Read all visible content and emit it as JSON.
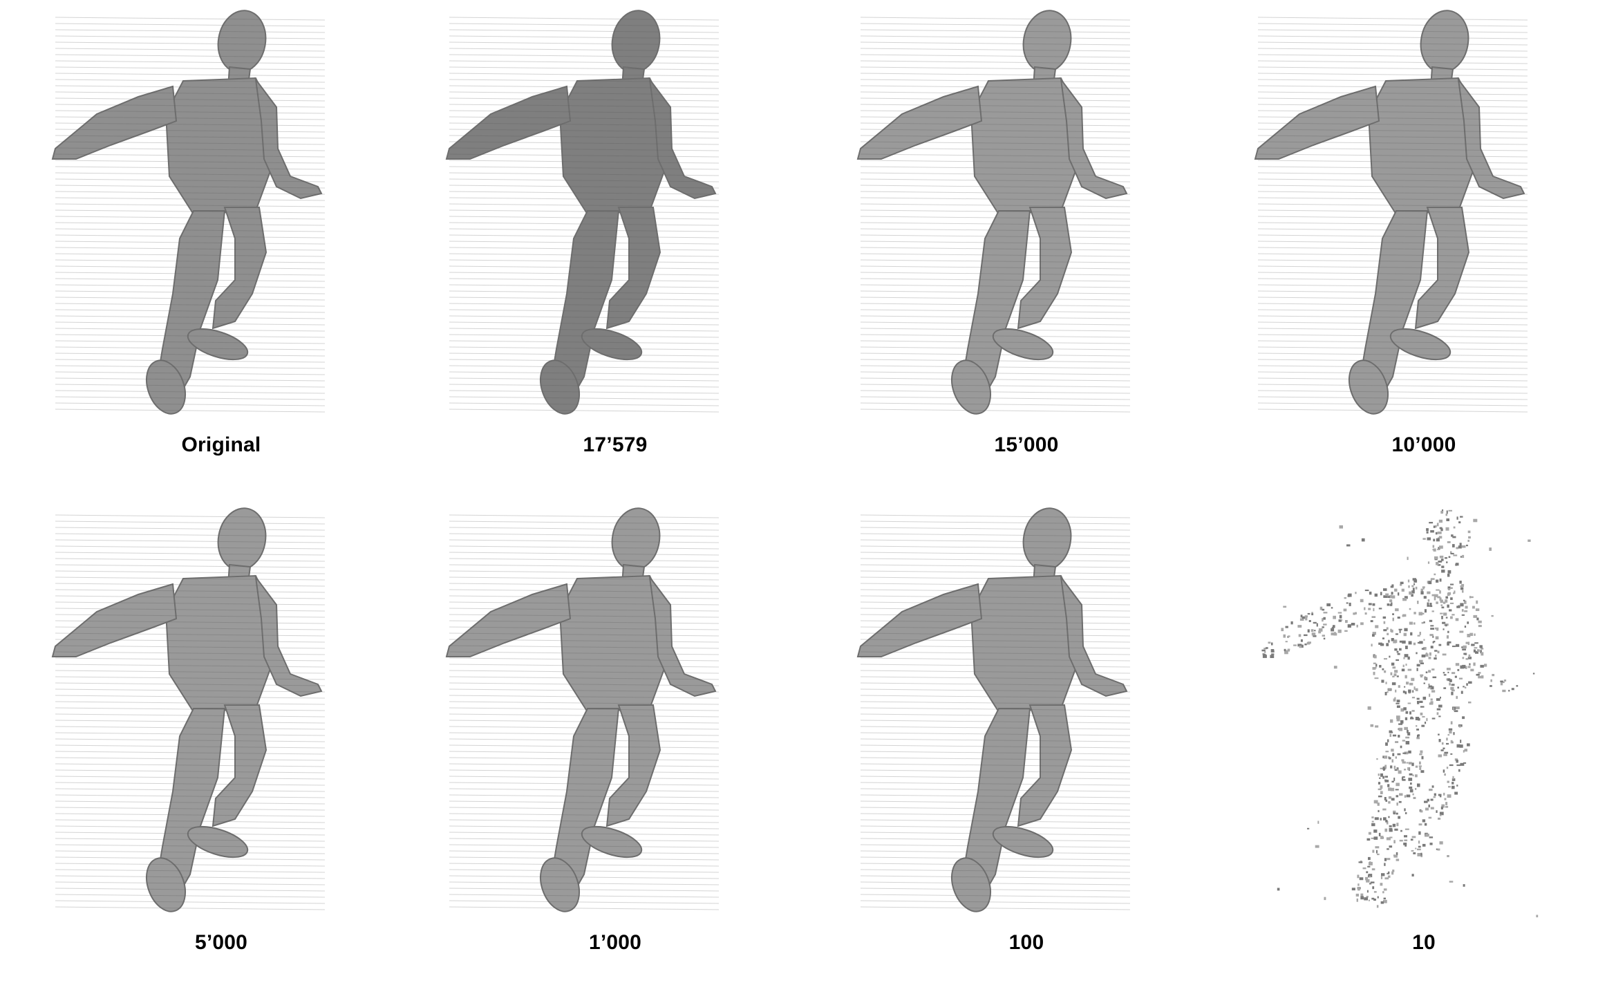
{
  "colors": {
    "background": "#ffffff",
    "figure_fill": "#8f8f8f",
    "figure_stroke": "#6e6e6e",
    "caption_text": "#000000"
  },
  "panels": [
    {
      "label": "Original",
      "style": "solid"
    },
    {
      "label": "17’579",
      "style": "solid-dark"
    },
    {
      "label": "15’000",
      "style": "solid-light"
    },
    {
      "label": "10’000",
      "style": "solid-light"
    },
    {
      "label": "5’000",
      "style": "solid-light"
    },
    {
      "label": "1’000",
      "style": "solid-light"
    },
    {
      "label": "100",
      "style": "solid-light"
    },
    {
      "label": "10",
      "style": "sparse"
    }
  ]
}
